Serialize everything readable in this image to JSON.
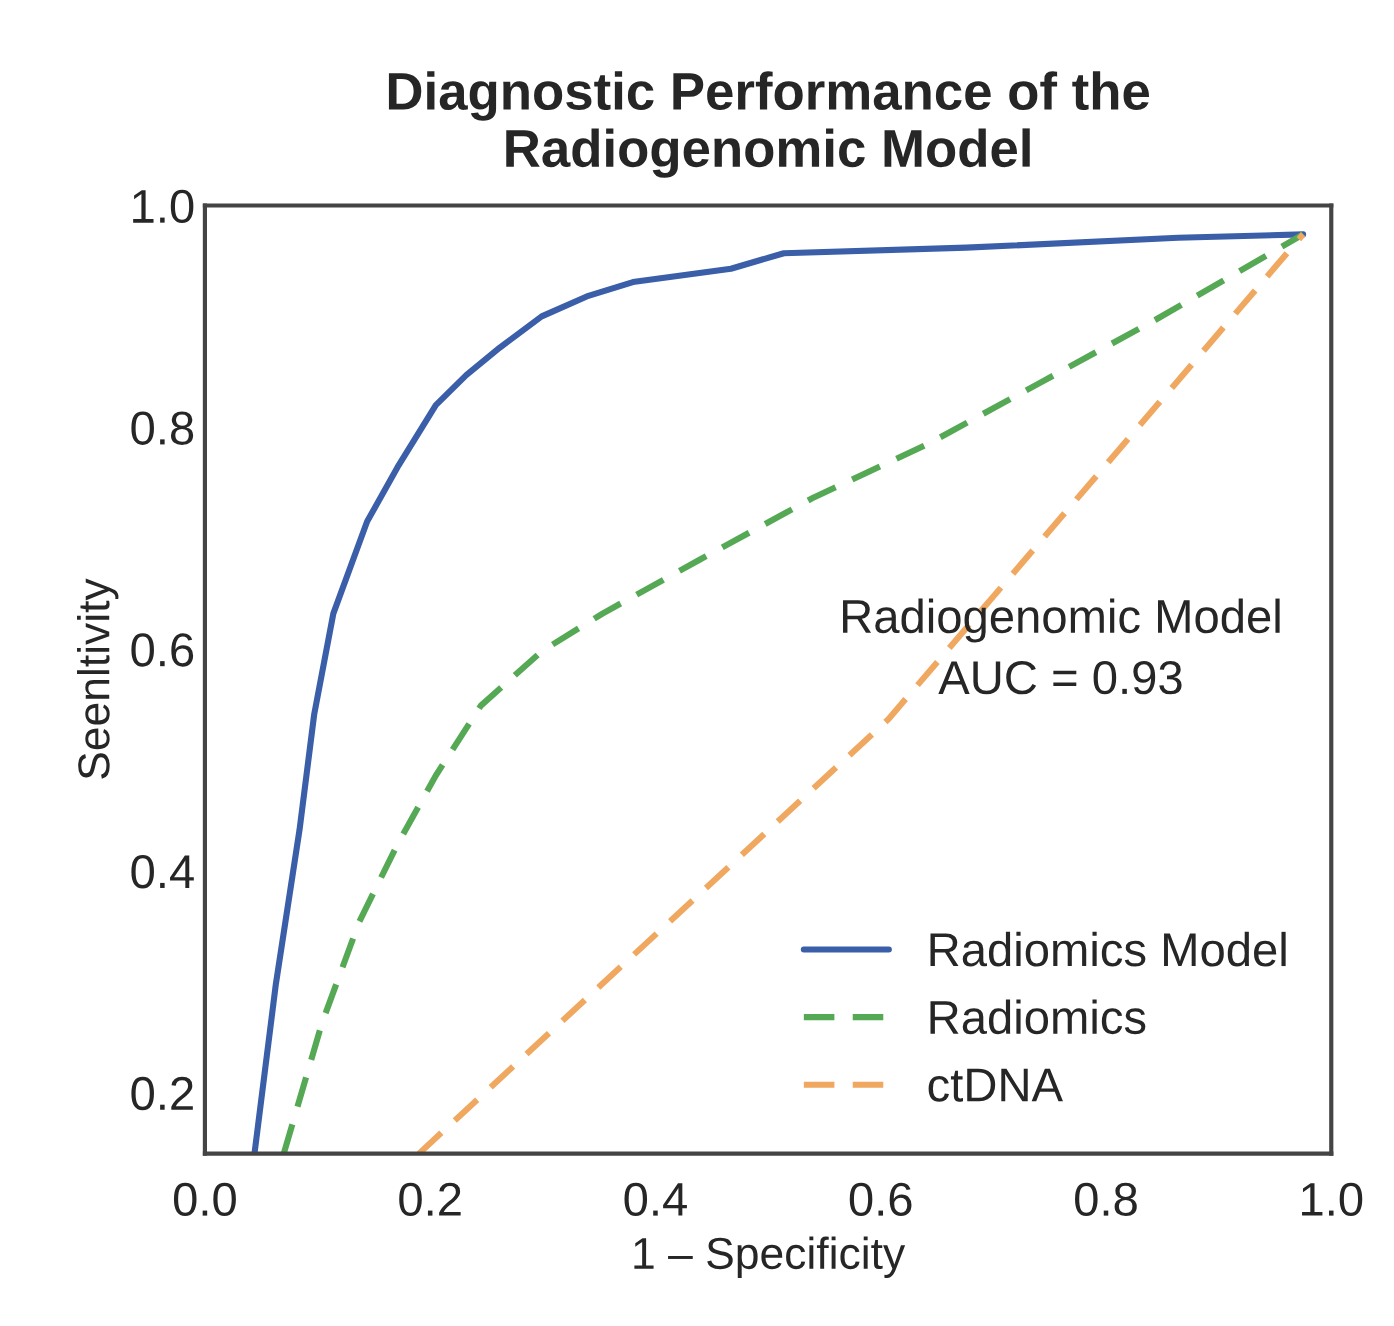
{
  "chart_data": {
    "type": "line",
    "title": "Diagnostic Performance of the\nRadiogenomic Model",
    "xlabel": "1 – Specificity",
    "ylabel": "Seenltivity",
    "annotations": [
      "Radiogenomic Model\nAUC = 0.93"
    ],
    "xlim": [
      0,
      1.0
    ],
    "ylim": [
      0.145,
      1.0
    ],
    "xticks": [
      {
        "value": 0,
        "label": "0.0"
      },
      0.2,
      0.4,
      0.6,
      0.8,
      {
        "value": 1,
        "label": "1.0"
      }
    ],
    "yticks": [
      0.2,
      0.4,
      0.6,
      0.8,
      {
        "value": 1,
        "label": "1.0"
      }
    ],
    "grid": false,
    "legend": "bottom right",
    "marker": "none",
    "series": [
      {
        "name": "Radiomics Model",
        "color": "#3a5fa8",
        "line_style": "solid",
        "x": [
          0.044,
          0.063,
          0.084,
          0.097,
          0.114,
          0.144,
          0.171,
          0.205,
          0.232,
          0.262,
          0.299,
          0.339,
          0.38,
          0.467,
          0.514,
          0.676,
          0.864,
          0.975
        ],
        "values": [
          0.145,
          0.298,
          0.437,
          0.541,
          0.632,
          0.715,
          0.764,
          0.82,
          0.847,
          0.872,
          0.9,
          0.918,
          0.931,
          0.943,
          0.957,
          0.962,
          0.971,
          0.974
        ]
      },
      {
        "name": "Radiomics",
        "color": "#55a955",
        "line_style": "dashed",
        "x": [
          0.07,
          0.104,
          0.137,
          0.171,
          0.205,
          0.245,
          0.299,
          0.353,
          0.44,
          0.541,
          0.642,
          0.743,
          0.844,
          0.975
        ],
        "values": [
          0.145,
          0.263,
          0.354,
          0.424,
          0.486,
          0.549,
          0.598,
          0.632,
          0.681,
          0.737,
          0.785,
          0.841,
          0.897,
          0.974
        ]
      },
      {
        "name": "ctDNA",
        "color": "#f0a860",
        "line_style": "dashed",
        "x": [
          0.19,
          0.607,
          0.975
        ],
        "values": [
          0.145,
          0.537,
          0.974
        ]
      }
    ]
  }
}
